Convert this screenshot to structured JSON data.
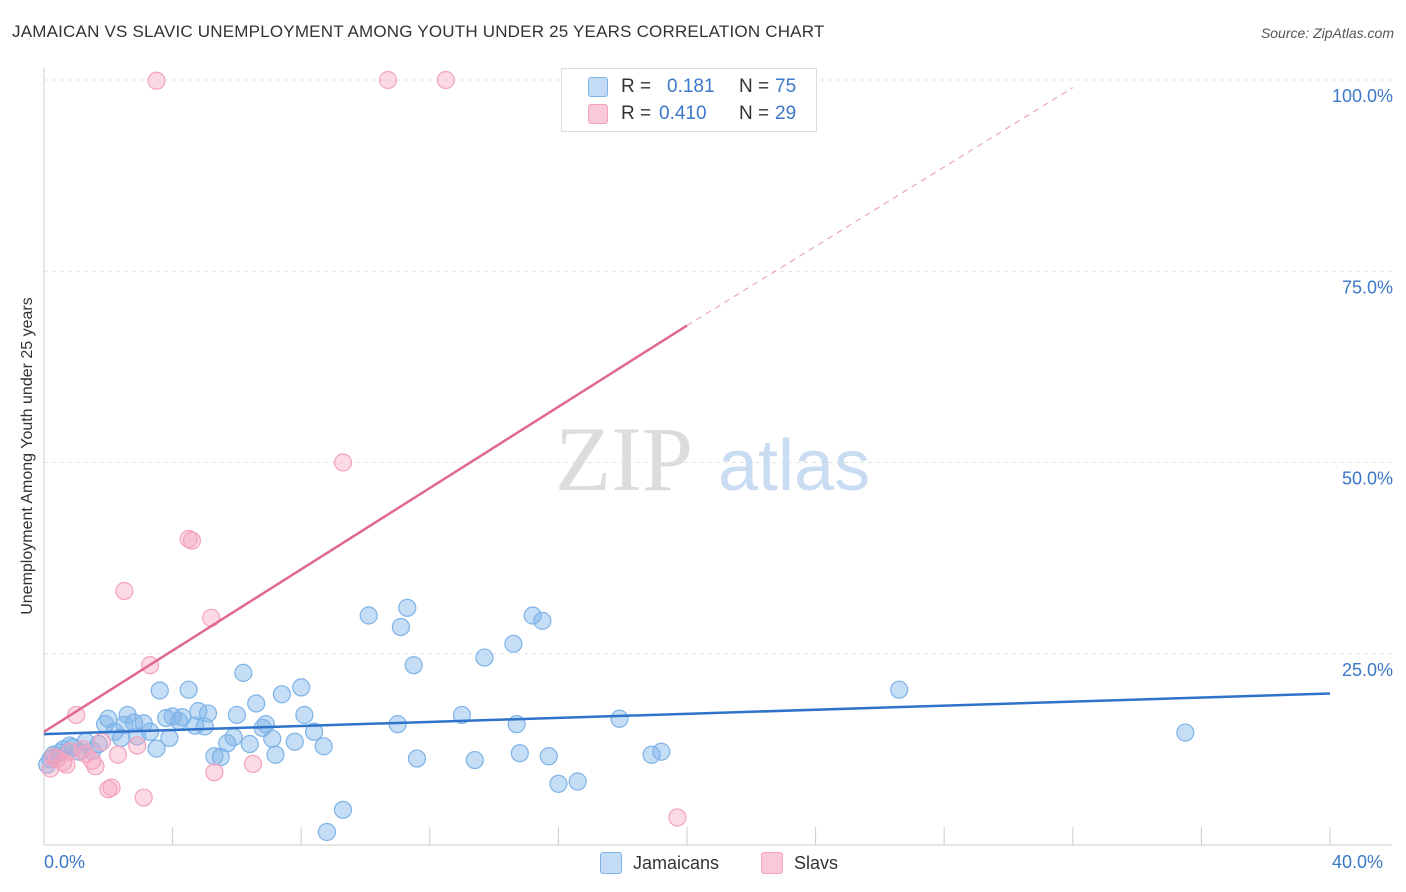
{
  "title": "JAMAICAN VS SLAVIC UNEMPLOYMENT AMONG YOUTH UNDER 25 YEARS CORRELATION CHART",
  "source": "Source: ZipAtlas.com",
  "watermark": {
    "zip": "ZIP",
    "atlas": "atlas"
  },
  "legend": {
    "rows": [
      {
        "r_label": "R =",
        "r_value": "0.181",
        "n_label": "N =",
        "n_value": "75"
      },
      {
        "r_label": "R =",
        "r_value": "0.410",
        "n_label": "N =",
        "n_value": "29"
      }
    ]
  },
  "bottom_legend": {
    "jamaicans": "Jamaicans",
    "slavs": "Slavs"
  },
  "chart_data": {
    "type": "scatter",
    "title": "JAMAICAN VS SLAVIC UNEMPLOYMENT AMONG YOUTH UNDER 25 YEARS CORRELATION CHART",
    "xlabel": "",
    "ylabel": "Unemployment Among Youth under 25 years",
    "xlim": [
      0,
      40
    ],
    "ylim": [
      0,
      100
    ],
    "x_tick_labels": [
      "0.0%",
      "40.0%"
    ],
    "y_tick_values": [
      25,
      50,
      75,
      100
    ],
    "y_tick_labels": [
      "25.0%",
      "50.0%",
      "75.0%",
      "100.0%"
    ],
    "colors": {
      "jamaicans": "#7eb3e8",
      "slavs": "#f4a2bd",
      "jam_line": "#2e72c9",
      "slav_line": "#e06a8f",
      "tick_text": "#3b78c9"
    },
    "series": [
      {
        "name": "Jamaicans",
        "R": 0.181,
        "N": 75,
        "trend": {
          "x0": 0,
          "y0": 14.5,
          "x1": 40,
          "y1": 19.8
        },
        "points": [
          [
            0.2,
            11.2
          ],
          [
            0.3,
            11.8
          ],
          [
            0.5,
            12.1
          ],
          [
            0.6,
            12.5
          ],
          [
            0.8,
            13.0
          ],
          [
            0.9,
            12.8
          ],
          [
            1.1,
            12.2
          ],
          [
            1.3,
            13.5
          ],
          [
            1.5,
            12.3
          ],
          [
            1.7,
            13.2
          ],
          [
            1.9,
            15.8
          ],
          [
            2.0,
            16.5
          ],
          [
            2.2,
            14.8
          ],
          [
            2.4,
            14.0
          ],
          [
            2.5,
            15.7
          ],
          [
            2.6,
            17.0
          ],
          [
            2.8,
            16.0
          ],
          [
            2.9,
            14.2
          ],
          [
            3.1,
            15.9
          ],
          [
            3.3,
            14.8
          ],
          [
            3.5,
            12.6
          ],
          [
            3.6,
            20.2
          ],
          [
            3.8,
            16.6
          ],
          [
            3.9,
            14.0
          ],
          [
            4.0,
            16.8
          ],
          [
            4.2,
            16.2
          ],
          [
            4.3,
            16.7
          ],
          [
            4.5,
            20.3
          ],
          [
            4.7,
            15.6
          ],
          [
            4.8,
            17.5
          ],
          [
            5.0,
            15.5
          ],
          [
            5.1,
            17.2
          ],
          [
            5.3,
            11.6
          ],
          [
            5.5,
            11.5
          ],
          [
            5.7,
            13.3
          ],
          [
            5.9,
            14.1
          ],
          [
            6.0,
            17.0
          ],
          [
            6.2,
            22.5
          ],
          [
            6.4,
            13.2
          ],
          [
            6.6,
            18.5
          ],
          [
            6.8,
            15.3
          ],
          [
            6.9,
            15.8
          ],
          [
            7.1,
            13.9
          ],
          [
            7.2,
            11.8
          ],
          [
            7.4,
            19.7
          ],
          [
            7.8,
            13.5
          ],
          [
            8.0,
            20.6
          ],
          [
            8.1,
            17.0
          ],
          [
            8.4,
            14.8
          ],
          [
            8.7,
            12.9
          ],
          [
            8.8,
            1.7
          ],
          [
            9.3,
            4.6
          ],
          [
            10.1,
            30.0
          ],
          [
            11.0,
            15.8
          ],
          [
            11.1,
            28.5
          ],
          [
            11.3,
            31.0
          ],
          [
            11.5,
            23.5
          ],
          [
            11.6,
            11.3
          ],
          [
            13.0,
            17.0
          ],
          [
            13.4,
            11.1
          ],
          [
            13.7,
            24.5
          ],
          [
            14.6,
            26.3
          ],
          [
            14.7,
            15.8
          ],
          [
            14.8,
            12.0
          ],
          [
            15.2,
            30.0
          ],
          [
            15.5,
            29.3
          ],
          [
            15.7,
            11.6
          ],
          [
            16.0,
            8.0
          ],
          [
            16.6,
            8.3
          ],
          [
            17.9,
            16.5
          ],
          [
            18.9,
            11.8
          ],
          [
            19.2,
            12.2
          ],
          [
            26.6,
            20.3
          ],
          [
            35.5,
            14.7
          ],
          [
            0.1,
            10.5
          ]
        ]
      },
      {
        "name": "Slavs",
        "R": 0.41,
        "N": 29,
        "trend": {
          "x0": 0,
          "y0": 14.8,
          "x1": 20.0,
          "y1": 67.9,
          "dash_x1": 32.0,
          "dash_y1": 99.0
        },
        "points": [
          [
            0.2,
            10.0
          ],
          [
            0.4,
            11.2
          ],
          [
            0.6,
            10.8
          ],
          [
            0.8,
            12.2
          ],
          [
            1.0,
            17.0
          ],
          [
            1.3,
            11.9
          ],
          [
            1.5,
            11.0
          ],
          [
            1.6,
            10.3
          ],
          [
            1.8,
            13.5
          ],
          [
            2.0,
            7.3
          ],
          [
            2.1,
            7.5
          ],
          [
            2.5,
            33.2
          ],
          [
            2.9,
            13.0
          ],
          [
            3.1,
            6.2
          ],
          [
            3.3,
            23.5
          ],
          [
            3.5,
            99.9
          ],
          [
            4.5,
            40.0
          ],
          [
            4.6,
            39.8
          ],
          [
            5.2,
            29.7
          ],
          [
            5.3,
            9.5
          ],
          [
            6.5,
            10.6
          ],
          [
            9.3,
            50.0
          ],
          [
            10.7,
            100.0
          ],
          [
            12.5,
            100.0
          ],
          [
            19.7,
            3.6
          ],
          [
            0.3,
            11.5
          ],
          [
            0.7,
            10.5
          ],
          [
            1.2,
            12.5
          ],
          [
            2.3,
            11.8
          ]
        ]
      }
    ]
  }
}
